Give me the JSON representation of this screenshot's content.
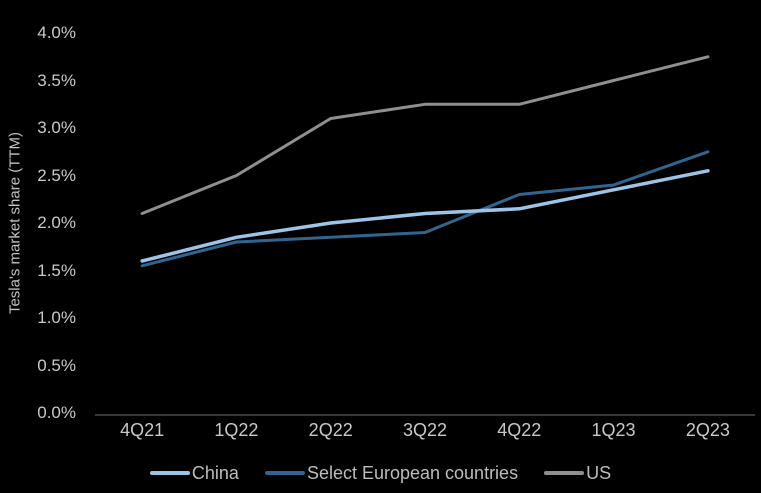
{
  "colors": {
    "background": "#000000",
    "tick_text": "#c9c9c9",
    "legend_text": "#bdbdbd",
    "axis_line": "#595959"
  },
  "y_axis": {
    "title": "Tesla's market share (TTM)",
    "ticks": [
      "0.0%",
      "0.5%",
      "1.0%",
      "1.5%",
      "2.0%",
      "2.5%",
      "3.0%",
      "3.5%",
      "4.0%"
    ],
    "tick_step": 0.5
  },
  "chart_data": {
    "type": "line",
    "title": "",
    "xlabel": "",
    "ylabel": "Tesla's market share (TTM)",
    "ylim": [
      0,
      4.0
    ],
    "grid": false,
    "legend_position": "bottom",
    "categories": [
      "4Q21",
      "1Q22",
      "2Q22",
      "3Q22",
      "4Q22",
      "1Q23",
      "2Q23"
    ],
    "series": [
      {
        "name": "China",
        "color": "#9dc3e6",
        "width": 3.5,
        "values": [
          1.6,
          1.85,
          2.0,
          2.1,
          2.15,
          2.35,
          2.55
        ]
      },
      {
        "name": "Select European countries",
        "color": "#31658f",
        "width": 3,
        "values": [
          1.55,
          1.8,
          1.85,
          1.9,
          2.3,
          2.4,
          2.75
        ]
      },
      {
        "name": "US",
        "color": "#8f8f8f",
        "width": 3,
        "values": [
          2.1,
          2.5,
          3.1,
          3.25,
          3.25,
          3.5,
          3.75
        ]
      }
    ]
  }
}
